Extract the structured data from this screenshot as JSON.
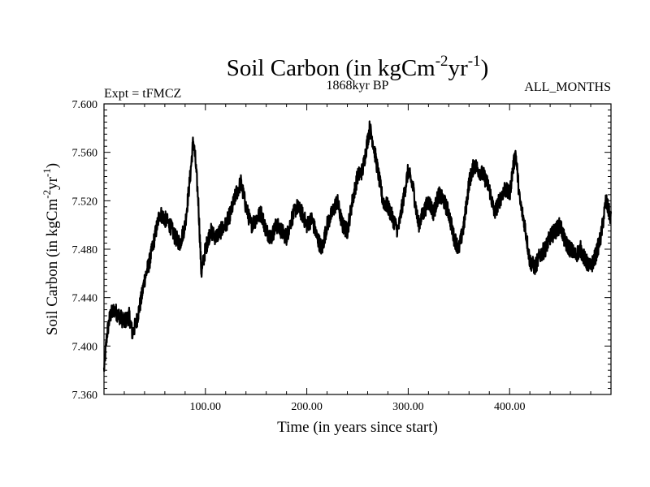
{
  "chart_data": {
    "type": "line",
    "title": {
      "main": "Soil Carbon (in kgCm",
      "sup1": "-2",
      "mid": "yr",
      "sup2": "-1",
      "end": ")"
    },
    "subtitle_left": "Expt = tFMCZ",
    "subtitle_center": "1868kyr BP",
    "subtitle_right": "ALL_MONTHS",
    "xlabel": "Time (in years since start)",
    "ylabel": {
      "main": "Soil Carbon (in kgCm",
      "sup1": "-2",
      "mid": "yr",
      "sup2": "-1",
      "end": ")"
    },
    "xlim": [
      0,
      500
    ],
    "ylim": [
      7.36,
      7.6
    ],
    "xticks": [
      100,
      200,
      300,
      400
    ],
    "xtick_labels": [
      "100.00",
      "200.00",
      "300.00",
      "400.00"
    ],
    "yticks": [
      7.36,
      7.4,
      7.44,
      7.48,
      7.52,
      7.56,
      7.6
    ],
    "ytick_labels": [
      "7.360",
      "7.400",
      "7.440",
      "7.480",
      "7.520",
      "7.560",
      "7.600"
    ],
    "color": "#000000",
    "series": [
      {
        "name": "Soil Carbon",
        "x": [
          0,
          3,
          6,
          10,
          15,
          20,
          25,
          28,
          32,
          37,
          40,
          45,
          50,
          55,
          60,
          65,
          70,
          75,
          80,
          85,
          88,
          90,
          93,
          96,
          100,
          105,
          110,
          115,
          120,
          125,
          130,
          135,
          140,
          145,
          150,
          155,
          160,
          165,
          170,
          175,
          180,
          185,
          190,
          195,
          200,
          205,
          210,
          215,
          220,
          225,
          230,
          235,
          240,
          245,
          250,
          255,
          258,
          262,
          265,
          270,
          275,
          280,
          285,
          290,
          295,
          300,
          305,
          310,
          315,
          320,
          325,
          330,
          335,
          340,
          345,
          350,
          355,
          360,
          365,
          370,
          375,
          380,
          385,
          390,
          395,
          400,
          403,
          406,
          410,
          415,
          420,
          425,
          430,
          435,
          440,
          445,
          450,
          455,
          460,
          465,
          470,
          475,
          480,
          485,
          490,
          495,
          500
        ],
        "values": [
          7.38,
          7.41,
          7.425,
          7.43,
          7.425,
          7.42,
          7.425,
          7.41,
          7.42,
          7.44,
          7.455,
          7.47,
          7.49,
          7.51,
          7.505,
          7.5,
          7.49,
          7.485,
          7.5,
          7.54,
          7.57,
          7.555,
          7.52,
          7.46,
          7.48,
          7.495,
          7.49,
          7.495,
          7.5,
          7.51,
          7.525,
          7.535,
          7.515,
          7.5,
          7.505,
          7.51,
          7.495,
          7.49,
          7.5,
          7.495,
          7.49,
          7.505,
          7.515,
          7.51,
          7.5,
          7.505,
          7.49,
          7.48,
          7.5,
          7.51,
          7.52,
          7.5,
          7.495,
          7.52,
          7.54,
          7.545,
          7.56,
          7.58,
          7.57,
          7.545,
          7.52,
          7.515,
          7.505,
          7.495,
          7.52,
          7.545,
          7.53,
          7.5,
          7.51,
          7.52,
          7.51,
          7.525,
          7.52,
          7.51,
          7.49,
          7.48,
          7.5,
          7.535,
          7.55,
          7.545,
          7.54,
          7.53,
          7.51,
          7.52,
          7.53,
          7.525,
          7.545,
          7.56,
          7.52,
          7.5,
          7.47,
          7.465,
          7.475,
          7.48,
          7.49,
          7.495,
          7.5,
          7.485,
          7.48,
          7.475,
          7.48,
          7.47,
          7.465,
          7.475,
          7.49,
          7.52,
          7.505
        ]
      }
    ]
  }
}
